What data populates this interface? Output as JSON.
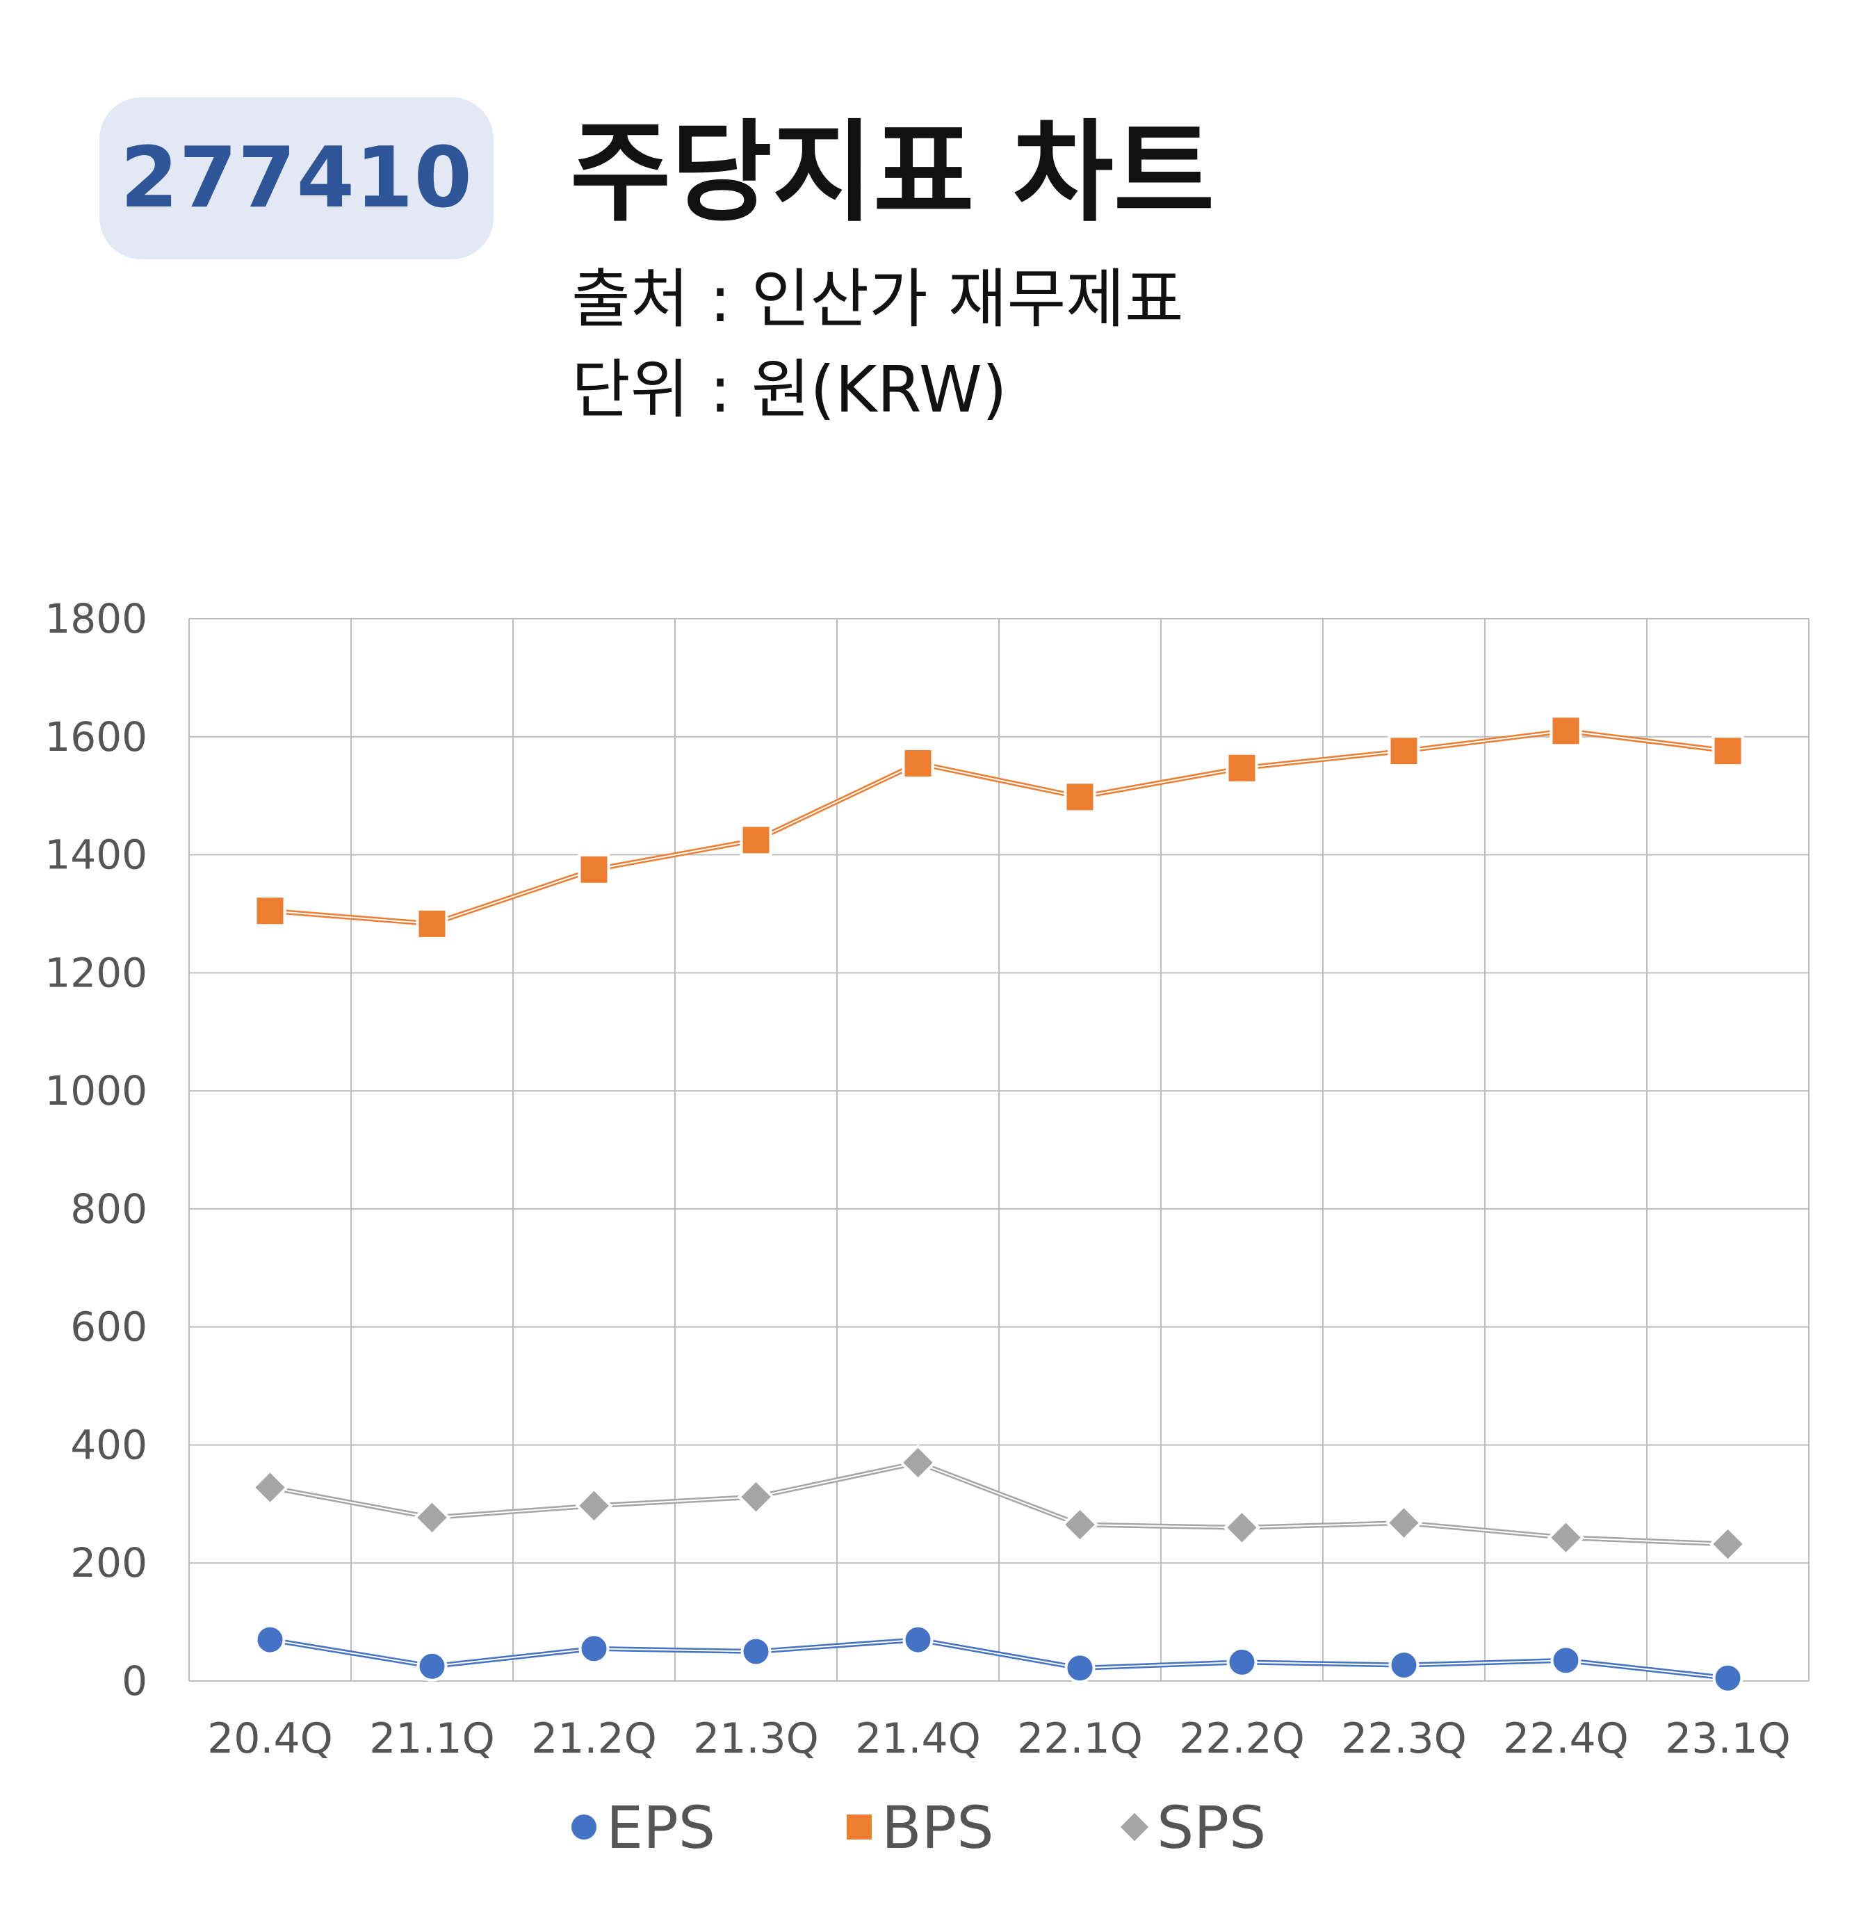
{
  "header": {
    "code": "277410",
    "title": "주당지표 차트",
    "source": "출처 : 인산가 재무제표",
    "unit": "단위 : 원(KRW)"
  },
  "chart_data": {
    "type": "line",
    "categories": [
      "20.4Q",
      "21.1Q",
      "21.2Q",
      "21.3Q",
      "21.4Q",
      "22.1Q",
      "22.2Q",
      "22.3Q",
      "22.4Q",
      "23.1Q"
    ],
    "series": [
      {
        "name": "EPS",
        "color": "#4472c4",
        "marker": "circle",
        "values": [
          70,
          25,
          55,
          50,
          70,
          22,
          32,
          27,
          35,
          5
        ]
      },
      {
        "name": "BPS",
        "color": "#ed7d31",
        "marker": "square",
        "values": [
          1305,
          1283,
          1375,
          1425,
          1555,
          1498,
          1547,
          1576,
          1610,
          1576
        ]
      },
      {
        "name": "SPS",
        "color": "#a5a5a5",
        "marker": "diamond",
        "values": [
          328,
          277,
          297,
          312,
          370,
          265,
          260,
          268,
          243,
          232
        ]
      }
    ],
    "ylim": [
      0,
      1800
    ],
    "yticks": [
      0,
      200,
      400,
      600,
      800,
      1000,
      1200,
      1400,
      1600,
      1800
    ],
    "grid": true,
    "legend": "bottom"
  }
}
